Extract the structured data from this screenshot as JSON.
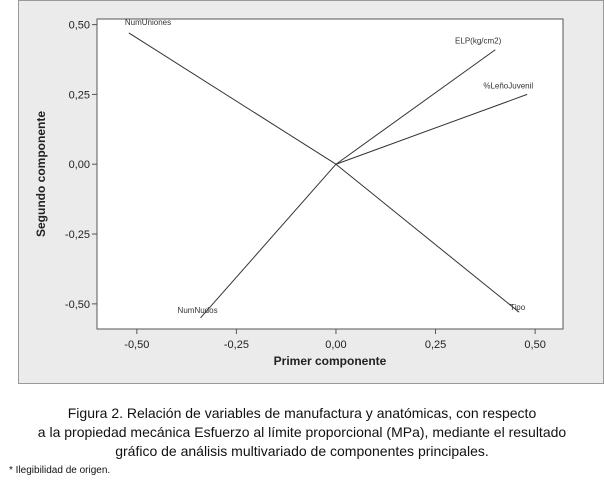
{
  "chart_data": {
    "type": "scatter",
    "title": "",
    "xlabel": "Primer componente",
    "ylabel": "Segundo componente",
    "xlim": [
      -0.6,
      0.57
    ],
    "ylim": [
      -0.59,
      0.52
    ],
    "xticks": [
      -0.5,
      -0.25,
      0.0,
      0.25,
      0.5
    ],
    "xtick_labels": [
      "-0,50",
      "-0,25",
      "0,00",
      "0,25",
      "0,50"
    ],
    "yticks": [
      -0.5,
      -0.25,
      0.0,
      0.25,
      0.5
    ],
    "ytick_labels": [
      "-0,50",
      "-0,25",
      "0,00",
      "0,25",
      "0,50"
    ],
    "grid": false,
    "legend": "none",
    "line_color": "#333333",
    "points": [
      {
        "label": "NumUniones",
        "x": -0.52,
        "y": 0.47
      },
      {
        "label": "ELP(kg/cm2)",
        "x": 0.4,
        "y": 0.41
      },
      {
        "label": "%LeñoJuvenil",
        "x": 0.48,
        "y": 0.25
      },
      {
        "label": "NumNudos",
        "x": -0.34,
        "y": -0.55
      },
      {
        "label": "Tipo",
        "x": 0.46,
        "y": -0.53
      }
    ]
  },
  "caption": {
    "line1": "Figura 2. Relación de variables de manufactura y anatómicas, con respecto",
    "line2": "a la propiedad mecánica Esfuerzo al límite proporcional (MPa), mediante el resultado",
    "line3": "gráfico de análisis multivariado de componentes principales."
  },
  "footnote": "* Ilegibilidad de origen."
}
